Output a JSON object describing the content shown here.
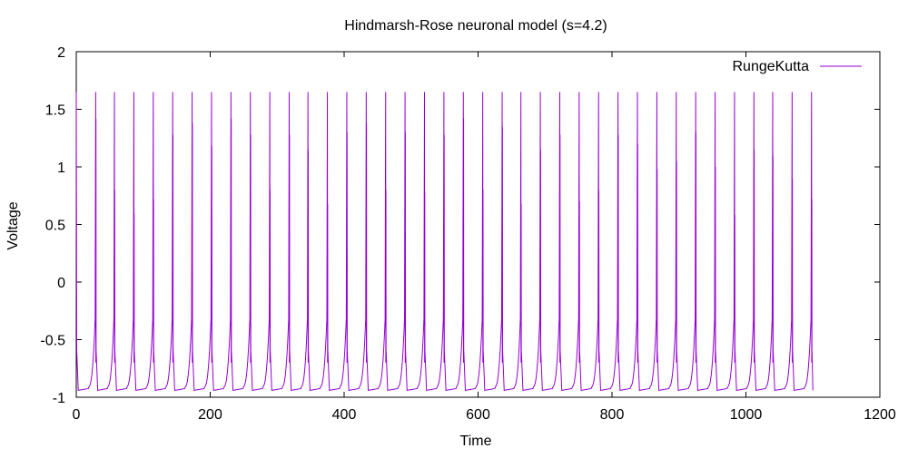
{
  "chart_data": {
    "type": "line",
    "title": "Hindmarsh-Rose neuronal model (s=4.2)",
    "xlabel": "Time",
    "ylabel": "Voltage",
    "xlim": [
      0,
      1200
    ],
    "ylim": [
      -1,
      2
    ],
    "xticks": [
      0,
      200,
      400,
      600,
      800,
      1000,
      1200
    ],
    "xtick_labels": [
      "0",
      "200",
      "400",
      "600",
      "800",
      "1000",
      "1200"
    ],
    "yticks": [
      -1,
      -0.5,
      0,
      0.5,
      1,
      1.5,
      2
    ],
    "ytick_labels": [
      "-1",
      "-0.5",
      "0",
      "0.5",
      "1",
      "1.5",
      "2"
    ],
    "grid": false,
    "legend_position": "top-right",
    "series": [
      {
        "name": "RungeKutta",
        "color": "#9400d3",
        "x_range": [
          0,
          1100
        ],
        "baseline": -0.94,
        "spike_peak": 1.65,
        "spike_times": [
          0,
          29,
          57,
          86,
          115,
          144,
          173,
          202,
          231,
          260,
          289,
          318,
          346,
          375,
          404,
          433,
          462,
          491,
          520,
          549,
          578,
          607,
          636,
          664,
          693,
          722,
          751,
          780,
          809,
          838,
          867,
          896,
          925,
          954,
          983,
          1012,
          1040,
          1069,
          1098
        ],
        "secondary_peaks": [
          1.42,
          0.8,
          0.6,
          0.72,
          1.28,
          1.38,
          1.18,
          1.42,
          1.28,
          0.8,
          1.28,
          1.15,
          0.68,
          1.3,
          1.38,
          0.8,
          1.3,
          0.78,
          1.28,
          1.42,
          0.8,
          1.35,
          0.68,
          1.15,
          1.28,
          0.7,
          0.8,
          1.28,
          1.2,
          0.98,
          1.05,
          1.3,
          1.0,
          0.58,
          1.15,
          1.1,
          0.9,
          0.72
        ]
      }
    ]
  }
}
